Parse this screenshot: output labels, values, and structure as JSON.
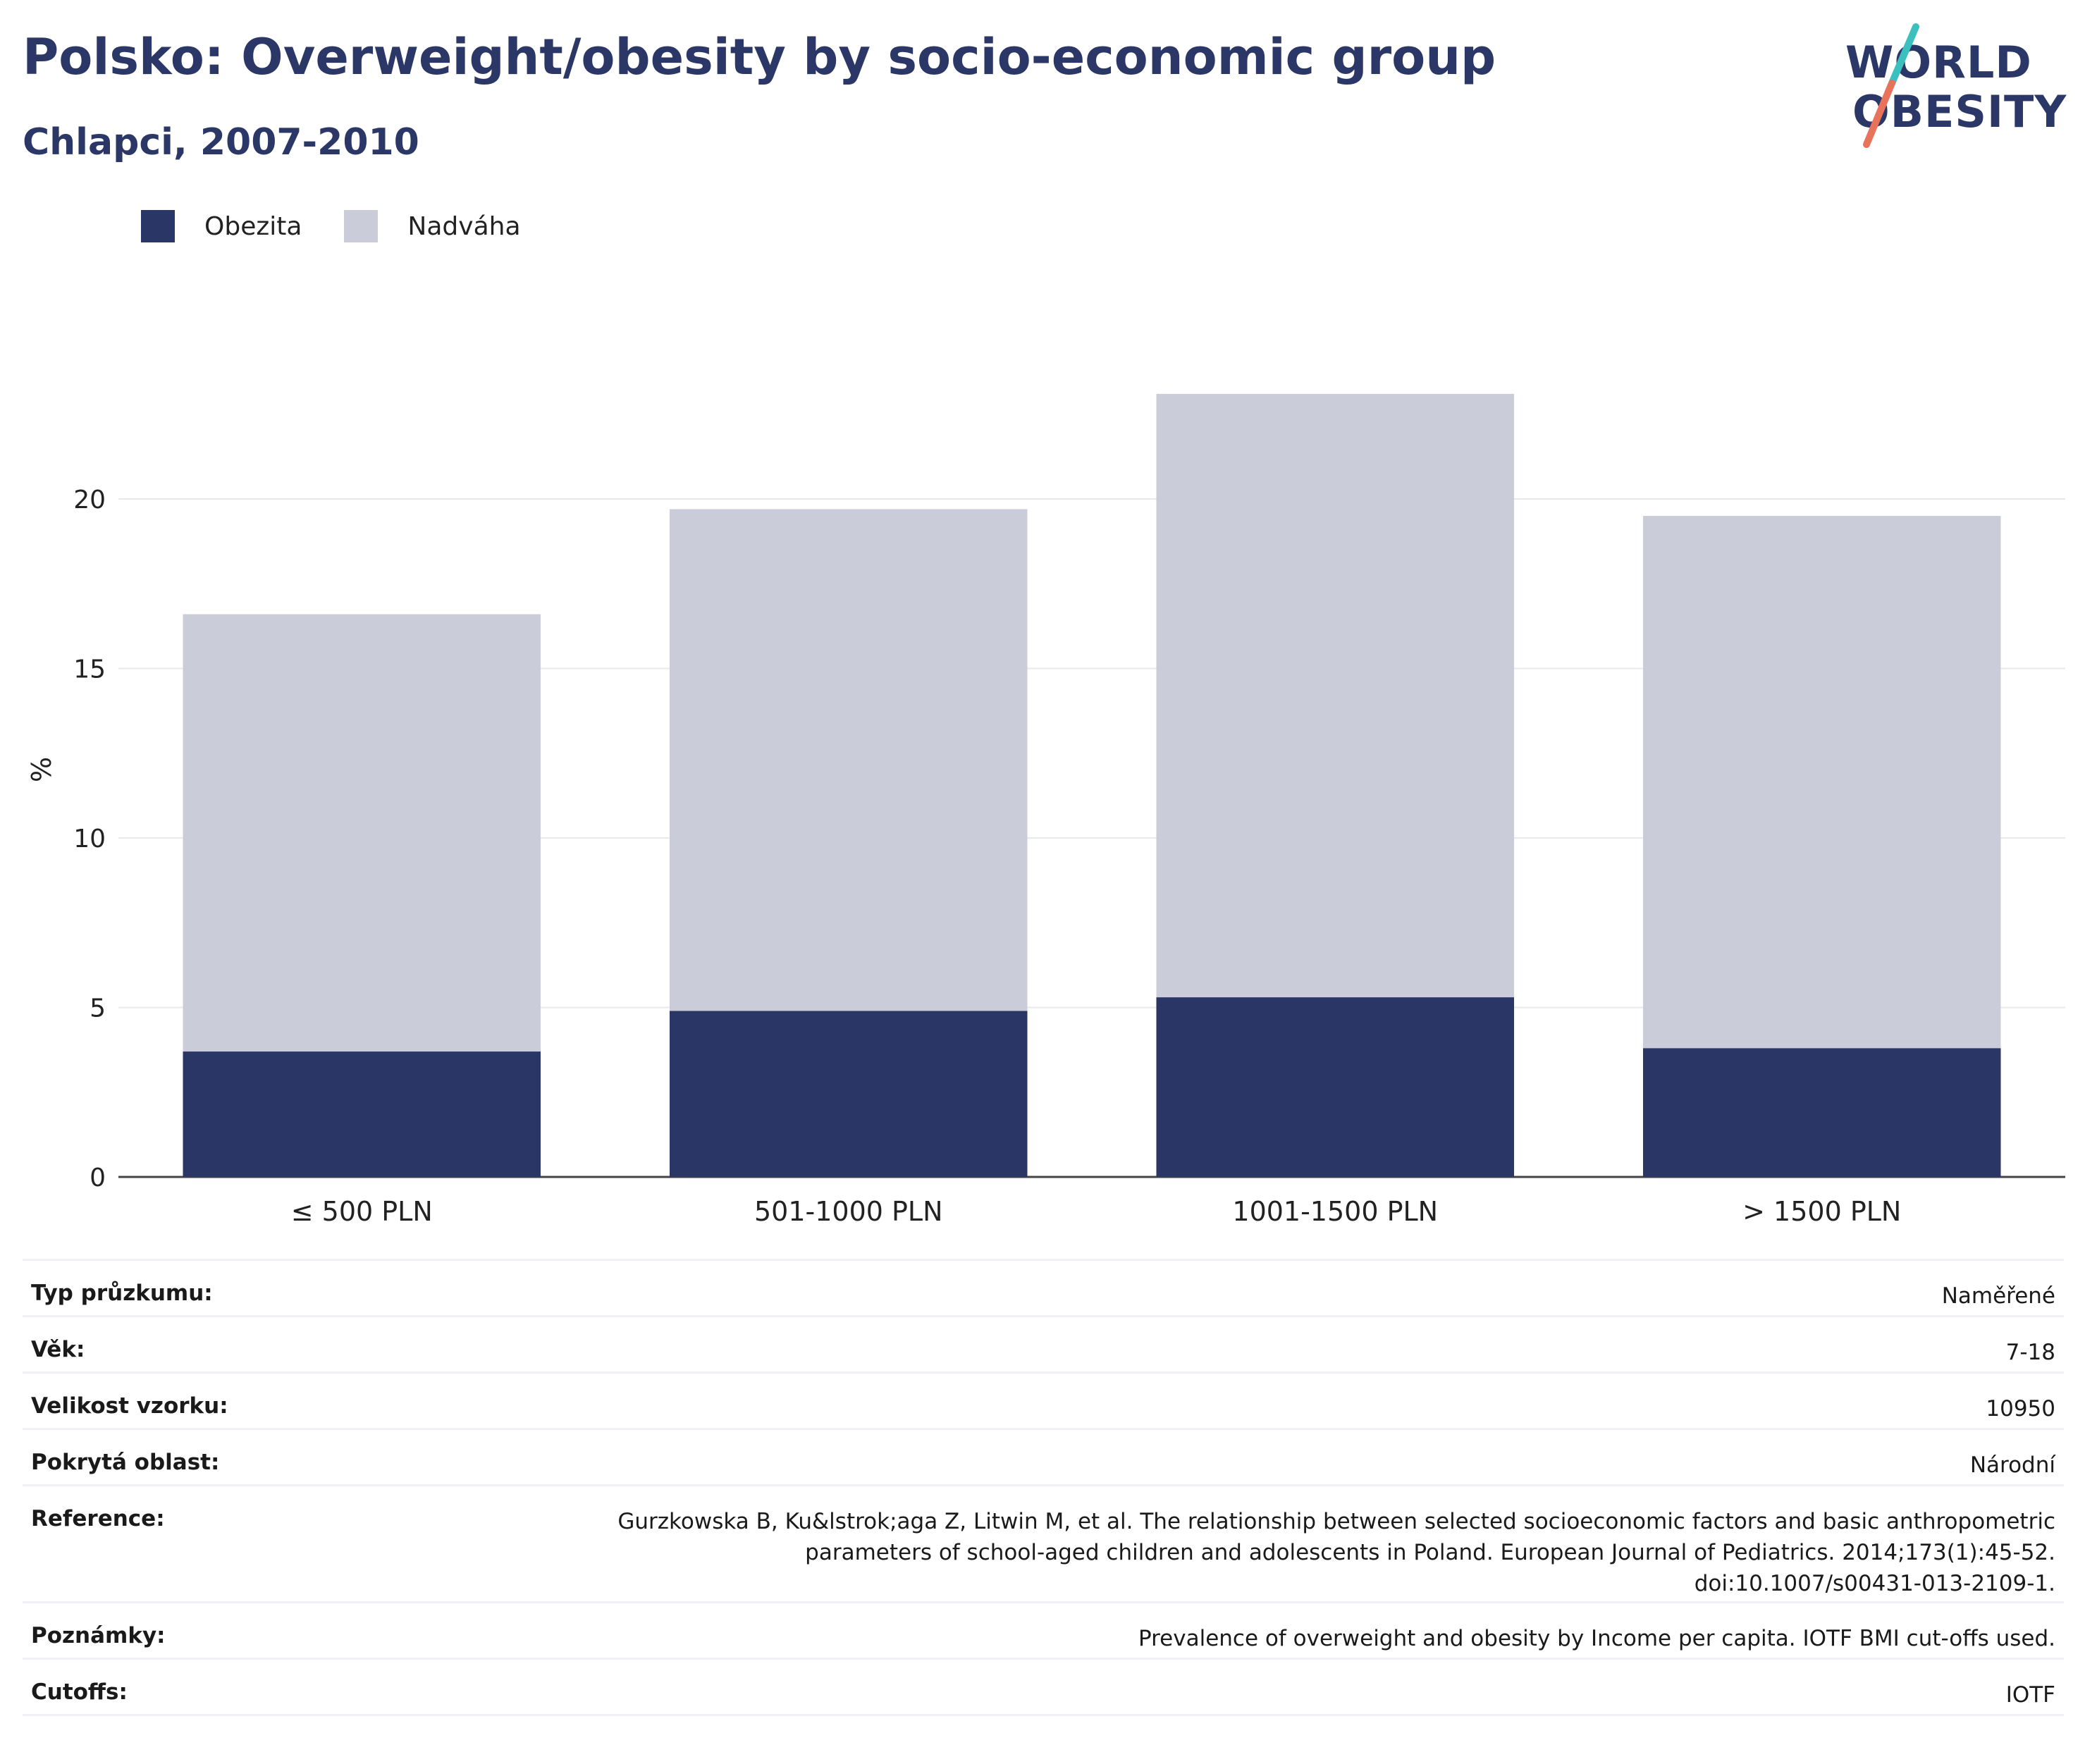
{
  "header": {
    "title": "Polsko: Overweight/obesity by socio-economic group",
    "subtitle": "Chlapci, 2007-2010"
  },
  "logo": {
    "line1": "WORLD",
    "line2": "OBESITY",
    "colors": {
      "text": "#2b3766",
      "slash_teal": "#3bbfbf",
      "slash_coral": "#e8735a"
    }
  },
  "legend": [
    {
      "label": "Obezita",
      "color": "#2a3766"
    },
    {
      "label": "Nadváha",
      "color": "#cacdd9"
    }
  ],
  "chart_data": {
    "type": "bar",
    "stacked": true,
    "categories": [
      "≤ 500 PLN",
      "501-1000 PLN",
      "1001-1500 PLN",
      "> 1500 PLN"
    ],
    "series": [
      {
        "name": "Obezita",
        "values": [
          3.7,
          4.9,
          5.3,
          3.8
        ],
        "color": "#2a3766"
      },
      {
        "name": "Nadváha",
        "values": [
          12.9,
          14.8,
          17.8,
          15.7
        ],
        "color": "#cacdd9"
      }
    ],
    "xlabel": "",
    "ylabel": "%",
    "ylim": [
      0,
      25
    ],
    "yticks": [
      0,
      5,
      10,
      15,
      20
    ],
    "grid": true,
    "legend_position": "top-left"
  },
  "info": [
    {
      "key": "Typ průzkumu:",
      "value": "Naměřené"
    },
    {
      "key": "Věk:",
      "value": "7-18"
    },
    {
      "key": "Velikost vzorku:",
      "value": "10950"
    },
    {
      "key": "Pokrytá oblast:",
      "value": "Národní"
    },
    {
      "key": "Reference:",
      "value_lines": [
        "Gurzkowska B, Ku&lstrok;aga Z, Litwin M, et al. The relationship between selected socioeconomic factors and basic anthropometric",
        "parameters of school-aged children and adolescents in Poland. European Journal of Pediatrics. 2014;173(1):45-52.",
        "doi:10.1007/s00431-013-2109-1."
      ]
    },
    {
      "key": "Poznámky:",
      "value": "Prevalence of overweight and obesity by Income per capita. IOTF BMI cut-offs used."
    },
    {
      "key": "Cutoffs:",
      "value": "IOTF"
    }
  ]
}
